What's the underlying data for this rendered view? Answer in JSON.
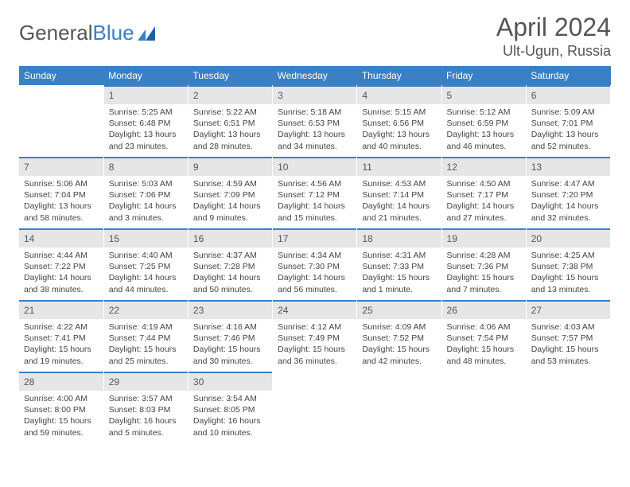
{
  "brand": {
    "part1": "General",
    "part2": "Blue"
  },
  "title": "April 2024",
  "location": "Ult-Ugun, Russia",
  "colors": {
    "accent": "#3b7fc4",
    "header_bg": "#3b7fc4",
    "header_text": "#ffffff",
    "daynum_bg": "#e6e6e6",
    "text": "#444444",
    "page_bg": "#ffffff"
  },
  "weekdays": [
    "Sunday",
    "Monday",
    "Tuesday",
    "Wednesday",
    "Thursday",
    "Friday",
    "Saturday"
  ],
  "weeks": [
    [
      {
        "day": "",
        "sunrise": "",
        "sunset": "",
        "daylight": ""
      },
      {
        "day": "1",
        "sunrise": "Sunrise: 5:25 AM",
        "sunset": "Sunset: 6:48 PM",
        "daylight": "Daylight: 13 hours and 23 minutes."
      },
      {
        "day": "2",
        "sunrise": "Sunrise: 5:22 AM",
        "sunset": "Sunset: 6:51 PM",
        "daylight": "Daylight: 13 hours and 28 minutes."
      },
      {
        "day": "3",
        "sunrise": "Sunrise: 5:18 AM",
        "sunset": "Sunset: 6:53 PM",
        "daylight": "Daylight: 13 hours and 34 minutes."
      },
      {
        "day": "4",
        "sunrise": "Sunrise: 5:15 AM",
        "sunset": "Sunset: 6:56 PM",
        "daylight": "Daylight: 13 hours and 40 minutes."
      },
      {
        "day": "5",
        "sunrise": "Sunrise: 5:12 AM",
        "sunset": "Sunset: 6:59 PM",
        "daylight": "Daylight: 13 hours and 46 minutes."
      },
      {
        "day": "6",
        "sunrise": "Sunrise: 5:09 AM",
        "sunset": "Sunset: 7:01 PM",
        "daylight": "Daylight: 13 hours and 52 minutes."
      }
    ],
    [
      {
        "day": "7",
        "sunrise": "Sunrise: 5:06 AM",
        "sunset": "Sunset: 7:04 PM",
        "daylight": "Daylight: 13 hours and 58 minutes."
      },
      {
        "day": "8",
        "sunrise": "Sunrise: 5:03 AM",
        "sunset": "Sunset: 7:06 PM",
        "daylight": "Daylight: 14 hours and 3 minutes."
      },
      {
        "day": "9",
        "sunrise": "Sunrise: 4:59 AM",
        "sunset": "Sunset: 7:09 PM",
        "daylight": "Daylight: 14 hours and 9 minutes."
      },
      {
        "day": "10",
        "sunrise": "Sunrise: 4:56 AM",
        "sunset": "Sunset: 7:12 PM",
        "daylight": "Daylight: 14 hours and 15 minutes."
      },
      {
        "day": "11",
        "sunrise": "Sunrise: 4:53 AM",
        "sunset": "Sunset: 7:14 PM",
        "daylight": "Daylight: 14 hours and 21 minutes."
      },
      {
        "day": "12",
        "sunrise": "Sunrise: 4:50 AM",
        "sunset": "Sunset: 7:17 PM",
        "daylight": "Daylight: 14 hours and 27 minutes."
      },
      {
        "day": "13",
        "sunrise": "Sunrise: 4:47 AM",
        "sunset": "Sunset: 7:20 PM",
        "daylight": "Daylight: 14 hours and 32 minutes."
      }
    ],
    [
      {
        "day": "14",
        "sunrise": "Sunrise: 4:44 AM",
        "sunset": "Sunset: 7:22 PM",
        "daylight": "Daylight: 14 hours and 38 minutes."
      },
      {
        "day": "15",
        "sunrise": "Sunrise: 4:40 AM",
        "sunset": "Sunset: 7:25 PM",
        "daylight": "Daylight: 14 hours and 44 minutes."
      },
      {
        "day": "16",
        "sunrise": "Sunrise: 4:37 AM",
        "sunset": "Sunset: 7:28 PM",
        "daylight": "Daylight: 14 hours and 50 minutes."
      },
      {
        "day": "17",
        "sunrise": "Sunrise: 4:34 AM",
        "sunset": "Sunset: 7:30 PM",
        "daylight": "Daylight: 14 hours and 56 minutes."
      },
      {
        "day": "18",
        "sunrise": "Sunrise: 4:31 AM",
        "sunset": "Sunset: 7:33 PM",
        "daylight": "Daylight: 15 hours and 1 minute."
      },
      {
        "day": "19",
        "sunrise": "Sunrise: 4:28 AM",
        "sunset": "Sunset: 7:36 PM",
        "daylight": "Daylight: 15 hours and 7 minutes."
      },
      {
        "day": "20",
        "sunrise": "Sunrise: 4:25 AM",
        "sunset": "Sunset: 7:38 PM",
        "daylight": "Daylight: 15 hours and 13 minutes."
      }
    ],
    [
      {
        "day": "21",
        "sunrise": "Sunrise: 4:22 AM",
        "sunset": "Sunset: 7:41 PM",
        "daylight": "Daylight: 15 hours and 19 minutes."
      },
      {
        "day": "22",
        "sunrise": "Sunrise: 4:19 AM",
        "sunset": "Sunset: 7:44 PM",
        "daylight": "Daylight: 15 hours and 25 minutes."
      },
      {
        "day": "23",
        "sunrise": "Sunrise: 4:16 AM",
        "sunset": "Sunset: 7:46 PM",
        "daylight": "Daylight: 15 hours and 30 minutes."
      },
      {
        "day": "24",
        "sunrise": "Sunrise: 4:12 AM",
        "sunset": "Sunset: 7:49 PM",
        "daylight": "Daylight: 15 hours and 36 minutes."
      },
      {
        "day": "25",
        "sunrise": "Sunrise: 4:09 AM",
        "sunset": "Sunset: 7:52 PM",
        "daylight": "Daylight: 15 hours and 42 minutes."
      },
      {
        "day": "26",
        "sunrise": "Sunrise: 4:06 AM",
        "sunset": "Sunset: 7:54 PM",
        "daylight": "Daylight: 15 hours and 48 minutes."
      },
      {
        "day": "27",
        "sunrise": "Sunrise: 4:03 AM",
        "sunset": "Sunset: 7:57 PM",
        "daylight": "Daylight: 15 hours and 53 minutes."
      }
    ],
    [
      {
        "day": "28",
        "sunrise": "Sunrise: 4:00 AM",
        "sunset": "Sunset: 8:00 PM",
        "daylight": "Daylight: 15 hours and 59 minutes."
      },
      {
        "day": "29",
        "sunrise": "Sunrise: 3:57 AM",
        "sunset": "Sunset: 8:03 PM",
        "daylight": "Daylight: 16 hours and 5 minutes."
      },
      {
        "day": "30",
        "sunrise": "Sunrise: 3:54 AM",
        "sunset": "Sunset: 8:05 PM",
        "daylight": "Daylight: 16 hours and 10 minutes."
      },
      {
        "day": "",
        "sunrise": "",
        "sunset": "",
        "daylight": ""
      },
      {
        "day": "",
        "sunrise": "",
        "sunset": "",
        "daylight": ""
      },
      {
        "day": "",
        "sunrise": "",
        "sunset": "",
        "daylight": ""
      },
      {
        "day": "",
        "sunrise": "",
        "sunset": "",
        "daylight": ""
      }
    ]
  ]
}
